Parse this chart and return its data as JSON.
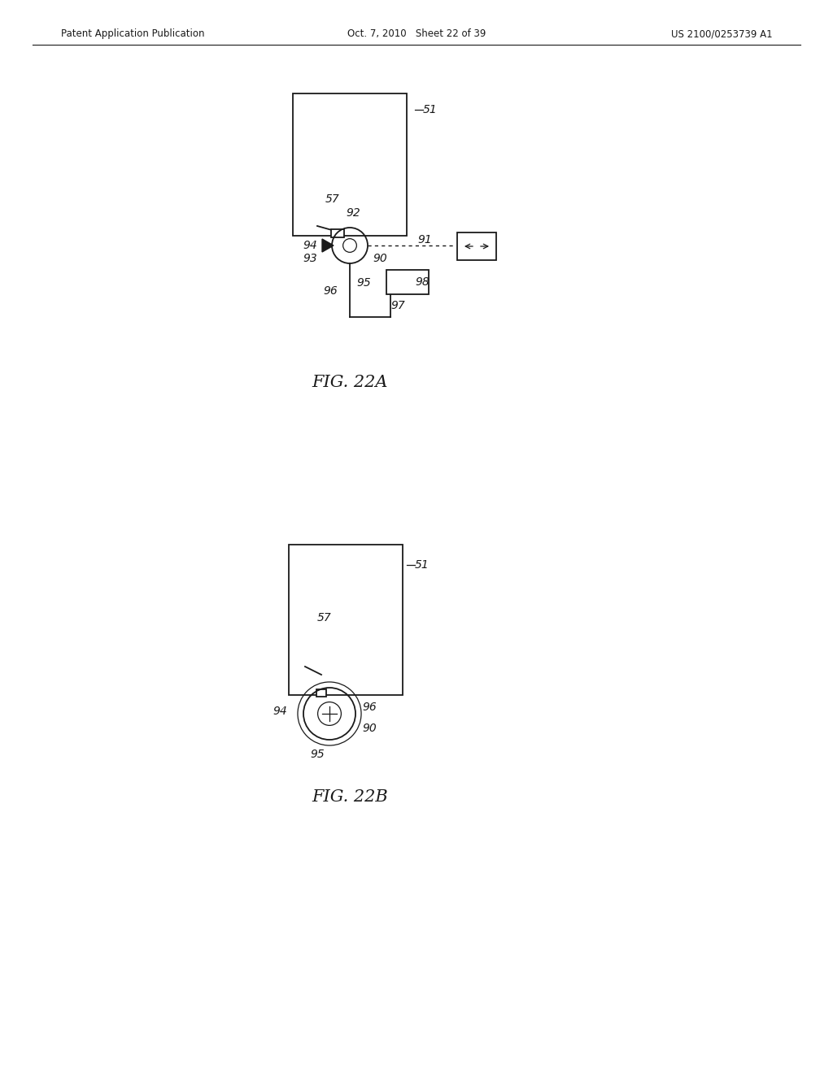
{
  "bg_color": "#ffffff",
  "line_color": "#1a1a1a",
  "header_left": "Patent Application Publication",
  "header_mid": "Oct. 7, 2010   Sheet 22 of 39",
  "header_right": "US 2100/0253739 A1",
  "fig22a_label": "FIG. 22A",
  "fig22b_label": "FIG. 22B"
}
